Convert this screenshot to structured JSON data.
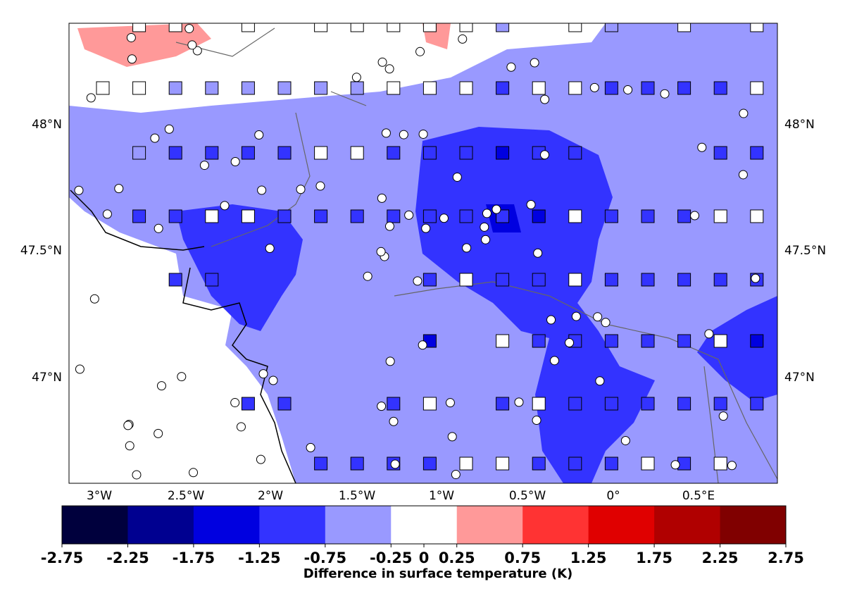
{
  "map": {
    "lon_labels": [
      "3°W",
      "2.5°W",
      "2°W",
      "1.5°W",
      "1°W",
      "0.5°W",
      "0°",
      "0.5°E"
    ],
    "lat_labels": [
      "48°N",
      "47.5°N",
      "47°N"
    ],
    "colorbar": {
      "label": "Difference in surface temperature (K)",
      "range": [
        -2.75,
        2.75
      ],
      "ticks": [
        -2.75,
        -2.25,
        -1.75,
        -1.25,
        -0.75,
        -0.25,
        0,
        0.25,
        0.75,
        1.25,
        1.75,
        2.25,
        2.75
      ],
      "colors": [
        "#00003d",
        "#000090",
        "#0000e0",
        "#3333ff",
        "#9999ff",
        "#ffffff",
        "#ff9999",
        "#ff3333",
        "#e00000",
        "#b00000",
        "#800000"
      ]
    }
  }
}
